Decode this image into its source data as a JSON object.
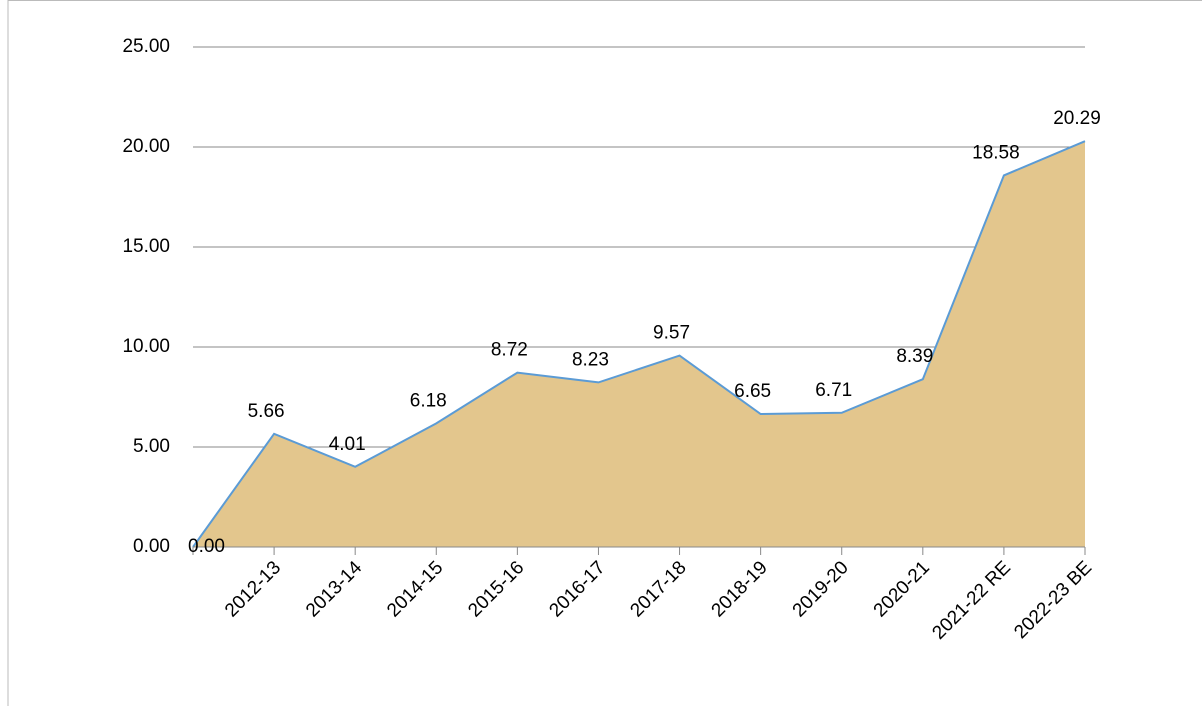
{
  "chart_data": {
    "type": "area",
    "categories": [
      null,
      "2012-13",
      "2013-14",
      "2014-15",
      "2015-16",
      "2016-17",
      "2017-18",
      "2018-19",
      "2019-20",
      "2020-21",
      "2021-22 RE",
      "2022-23 BE"
    ],
    "values": [
      0,
      5.66,
      4.01,
      6.18,
      8.72,
      8.23,
      9.57,
      6.65,
      6.71,
      8.39,
      18.58,
      20.29
    ],
    "value_labels": [
      "0.00",
      "5.66",
      "4.01",
      "6.18",
      "8.72",
      "8.23",
      "9.57",
      "6.65",
      "6.71",
      "8.39",
      "18.58",
      "20.29"
    ],
    "color": "#e3c68d",
    "line_color": "#5b9bd5",
    "ylim": [
      0,
      25
    ],
    "yticks": [
      {
        "value": 0,
        "label": "0.00"
      },
      {
        "value": 5,
        "label": "5.00"
      },
      {
        "value": 10,
        "label": "10.00"
      },
      {
        "value": 15,
        "label": "15.00"
      },
      {
        "value": 20,
        "label": "20.00"
      },
      {
        "value": 25,
        "label": "25.00"
      }
    ],
    "grid": true
  }
}
